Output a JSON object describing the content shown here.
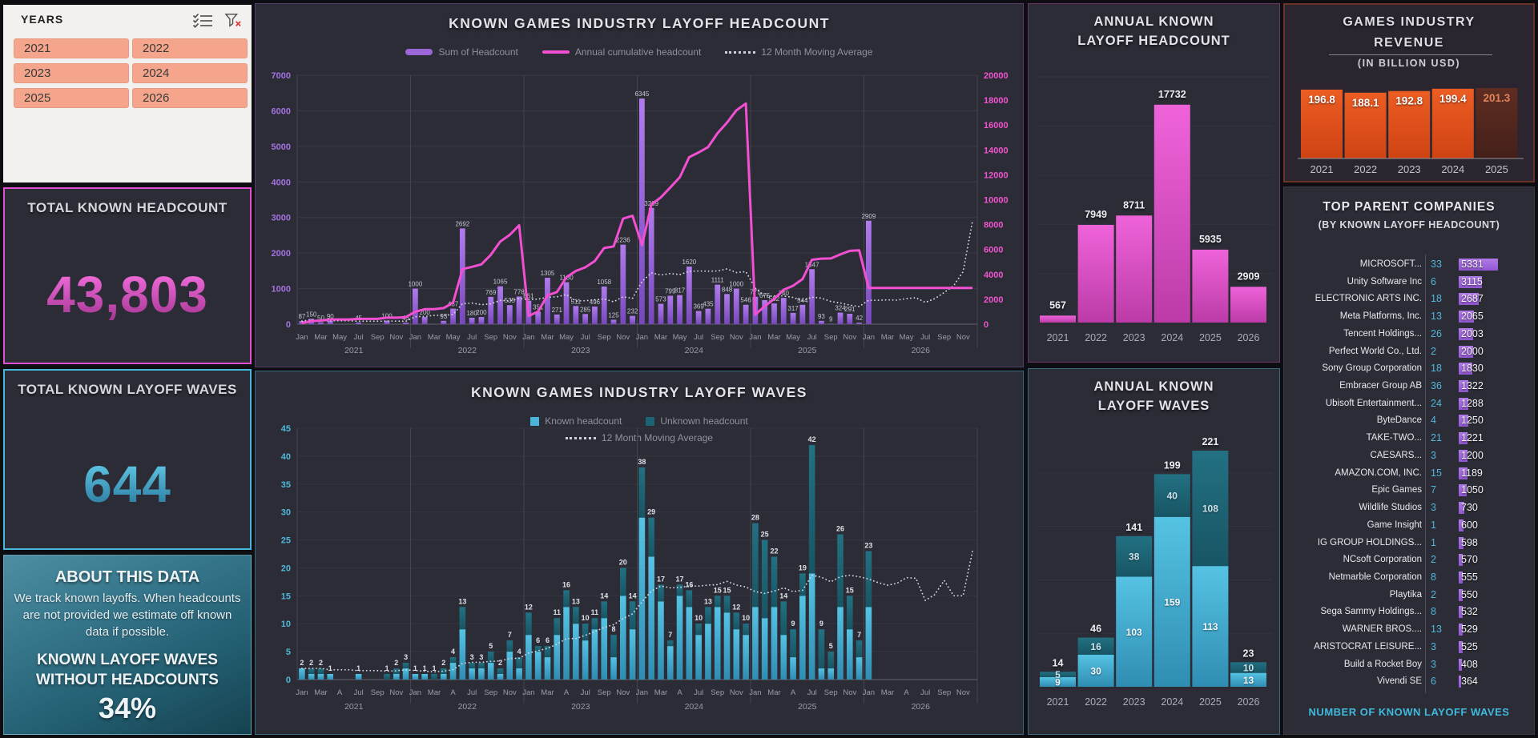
{
  "years_panel": {
    "title": "YEARS",
    "buttons": [
      "2021",
      "2022",
      "2023",
      "2024",
      "2025",
      "2026"
    ]
  },
  "cards": {
    "headcount": {
      "title": "TOTAL KNOWN HEADCOUNT",
      "value": "43,803"
    },
    "waves": {
      "title": "TOTAL KNOWN LAYOFF WAVES",
      "value": "644"
    },
    "about": {
      "title": "ABOUT THIS DATA",
      "body": "We track known layoffs. When headcounts are not provided we estimate off known data if possible.",
      "highlight_line1": "KNOWN LAYOFF WAVES",
      "highlight_line2": "WITHOUT HEADCOUNTS",
      "percent": "34%"
    }
  },
  "colors": {
    "purple": "#9a66d8",
    "pink": "#f24fd2",
    "teal_light": "#4ab4d8",
    "teal_dark": "#1d6375",
    "magenta": "#e14fd2",
    "orange": "#e4531d",
    "salmon": "#f4a58c"
  },
  "chart_data": [
    {
      "id": "monthly_headcount",
      "type": "combo-bar-line",
      "title": "KNOWN GAMES INDUSTRY LAYOFF HEADCOUNT",
      "legend": [
        "Sum of Headcount",
        "Annual cumulative headcount",
        "12 Month Moving Average"
      ],
      "ylim_left": [
        0,
        7000
      ],
      "ytick_step_left": 1000,
      "ylim_right": [
        0,
        20000
      ],
      "ytick_step_right": 2000,
      "month_ticks": [
        "Jan",
        "Mar",
        "May",
        "Jul",
        "Sep",
        "Nov"
      ],
      "years": [
        "2021",
        "2022",
        "2023",
        "2024",
        "2025",
        "2026"
      ],
      "values": {
        "2021": [
          87,
          150,
          50,
          90,
          0,
          0,
          45,
          0,
          0,
          100,
          0,
          45
        ],
        "2022": [
          1000,
          200,
          0,
          93,
          437,
          2692,
          180,
          200,
          769,
          1065,
          535,
          778
        ],
        "2023": [
          661,
          351,
          1305,
          271,
          1180,
          511,
          285,
          496,
          1058,
          125,
          2236,
          232
        ],
        "2024": [
          6345,
          3269,
          573,
          799,
          817,
          1620,
          369,
          435,
          1111,
          848,
          1000,
          546
        ],
        "2025": [
          771,
          675,
          582,
          740,
          317,
          544,
          1547,
          93,
          9,
          324,
          291,
          42
        ],
        "2026": [
          2909,
          0,
          0,
          0,
          0,
          0,
          0,
          0,
          0,
          0,
          0,
          0
        ]
      }
    },
    {
      "id": "monthly_waves",
      "type": "stacked-bar",
      "title": "KNOWN GAMES INDUSTRY LAYOFF WAVES",
      "legend": [
        "Known headcount",
        "Unknown headcount",
        "12 Month Moving Average"
      ],
      "ylim": [
        0,
        45
      ],
      "ytick_step": 5,
      "month_ticks": [
        "Jan",
        "Mar",
        "A",
        "Jul",
        "Sep",
        "Nov"
      ],
      "years": [
        "2021",
        "2022",
        "2023",
        "2024",
        "2025",
        "2026"
      ],
      "known": {
        "2021": [
          2,
          1,
          1,
          1,
          0,
          0,
          1,
          0,
          0,
          0,
          1,
          2
        ],
        "2022": [
          1,
          1,
          0,
          1,
          3,
          9,
          2,
          2,
          3,
          1,
          5,
          2
        ],
        "2023": [
          8,
          5,
          4,
          8,
          13,
          10,
          7,
          9,
          11,
          4,
          15,
          9
        ],
        "2024": [
          29,
          22,
          14,
          6,
          15,
          13,
          8,
          10,
          13,
          12,
          9,
          8
        ],
        "2025": [
          13,
          11,
          13,
          8,
          4,
          15,
          19,
          2,
          2,
          13,
          9,
          4
        ],
        "2026": [
          13,
          0,
          0,
          0,
          0,
          0,
          0,
          0,
          0,
          0,
          0,
          0
        ]
      },
      "unknown": {
        "2021": [
          0,
          1,
          1,
          0,
          0,
          0,
          0,
          0,
          0,
          1,
          1,
          1
        ],
        "2022": [
          0,
          0,
          1,
          1,
          1,
          4,
          1,
          1,
          2,
          1,
          2,
          2
        ],
        "2023": [
          4,
          1,
          2,
          3,
          3,
          3,
          3,
          2,
          3,
          4,
          5,
          5
        ],
        "2024": [
          9,
          7,
          3,
          1,
          2,
          3,
          2,
          3,
          2,
          3,
          3,
          2
        ],
        "2025": [
          15,
          14,
          9,
          6,
          5,
          4,
          23,
          7,
          3,
          13,
          6,
          3
        ],
        "2026": [
          10,
          0,
          0,
          0,
          0,
          0,
          0,
          0,
          0,
          0,
          0,
          0
        ]
      }
    },
    {
      "id": "annual_headcount",
      "type": "bar",
      "title_line1": "ANNUAL KNOWN",
      "title_line2": "LAYOFF HEADCOUNT",
      "categories": [
        "2021",
        "2022",
        "2023",
        "2024",
        "2025",
        "2026"
      ],
      "values": [
        567,
        7949,
        8711,
        17732,
        5935,
        2909
      ]
    },
    {
      "id": "annual_waves",
      "type": "stacked-bar",
      "title_line1": "ANNUAL KNOWN",
      "title_line2": "LAYOFF WAVES",
      "categories": [
        "2021",
        "2022",
        "2023",
        "2024",
        "2025",
        "2026"
      ],
      "known": [
        9,
        30,
        103,
        159,
        113,
        13
      ],
      "unknown": [
        5,
        16,
        38,
        40,
        108,
        10
      ],
      "totals": [
        14,
        46,
        141,
        199,
        221,
        23
      ]
    },
    {
      "id": "industry_revenue",
      "type": "bar",
      "title_line1": "GAMES INDUSTRY",
      "title_line2": "REVENUE",
      "subtitle": "(IN BILLION USD)",
      "categories": [
        "2021",
        "2022",
        "2023",
        "2024",
        "2025"
      ],
      "values": [
        196.8,
        188.1,
        192.8,
        199.4,
        201.3
      ],
      "muted_year": "2025"
    }
  ],
  "companies": {
    "title": "TOP PARENT COMPANIES",
    "subtitle": "(BY KNOWN LAYOFF HEADCOUNT)",
    "footer": "NUMBER OF KNOWN LAYOFF WAVES",
    "rows": [
      {
        "name": "MICROSOFT...",
        "waves": 33,
        "headcount": 5331
      },
      {
        "name": "Unity Software Inc",
        "waves": 6,
        "headcount": 3115
      },
      {
        "name": "ELECTRONIC ARTS INC.",
        "waves": 18,
        "headcount": 2687
      },
      {
        "name": "Meta Platforms, Inc.",
        "waves": 13,
        "headcount": 2065
      },
      {
        "name": "Tencent Holdings...",
        "waves": 26,
        "headcount": 2003
      },
      {
        "name": "Perfect World Co., Ltd.",
        "waves": 2,
        "headcount": 2000
      },
      {
        "name": "Sony Group Corporation",
        "waves": 18,
        "headcount": 1830
      },
      {
        "name": "Embracer Group AB",
        "waves": 36,
        "headcount": 1322
      },
      {
        "name": "Ubisoft Entertainment...",
        "waves": 24,
        "headcount": 1288
      },
      {
        "name": "ByteDance",
        "waves": 4,
        "headcount": 1250
      },
      {
        "name": "TAKE-TWO...",
        "waves": 21,
        "headcount": 1221
      },
      {
        "name": "CAESARS...",
        "waves": 3,
        "headcount": 1200
      },
      {
        "name": "AMAZON.COM, INC.",
        "waves": 15,
        "headcount": 1189
      },
      {
        "name": "Epic Games",
        "waves": 7,
        "headcount": 1050
      },
      {
        "name": "Wildlife Studios",
        "waves": 3,
        "headcount": 730
      },
      {
        "name": "Game Insight",
        "waves": 1,
        "headcount": 600
      },
      {
        "name": "IG GROUP HOLDINGS...",
        "waves": 1,
        "headcount": 598
      },
      {
        "name": "NCsoft Corporation",
        "waves": 2,
        "headcount": 570
      },
      {
        "name": "Netmarble Corporation",
        "waves": 8,
        "headcount": 555
      },
      {
        "name": "Playtika",
        "waves": 2,
        "headcount": 550
      },
      {
        "name": "Sega Sammy Holdings...",
        "waves": 8,
        "headcount": 532
      },
      {
        "name": "WARNER BROS....",
        "waves": 13,
        "headcount": 529
      },
      {
        "name": "ARISTOCRAT LEISURE...",
        "waves": 3,
        "headcount": 525
      },
      {
        "name": "Build a Rocket Boy",
        "waves": 3,
        "headcount": 408
      },
      {
        "name": "Vivendi SE",
        "waves": 6,
        "headcount": 364
      }
    ]
  }
}
